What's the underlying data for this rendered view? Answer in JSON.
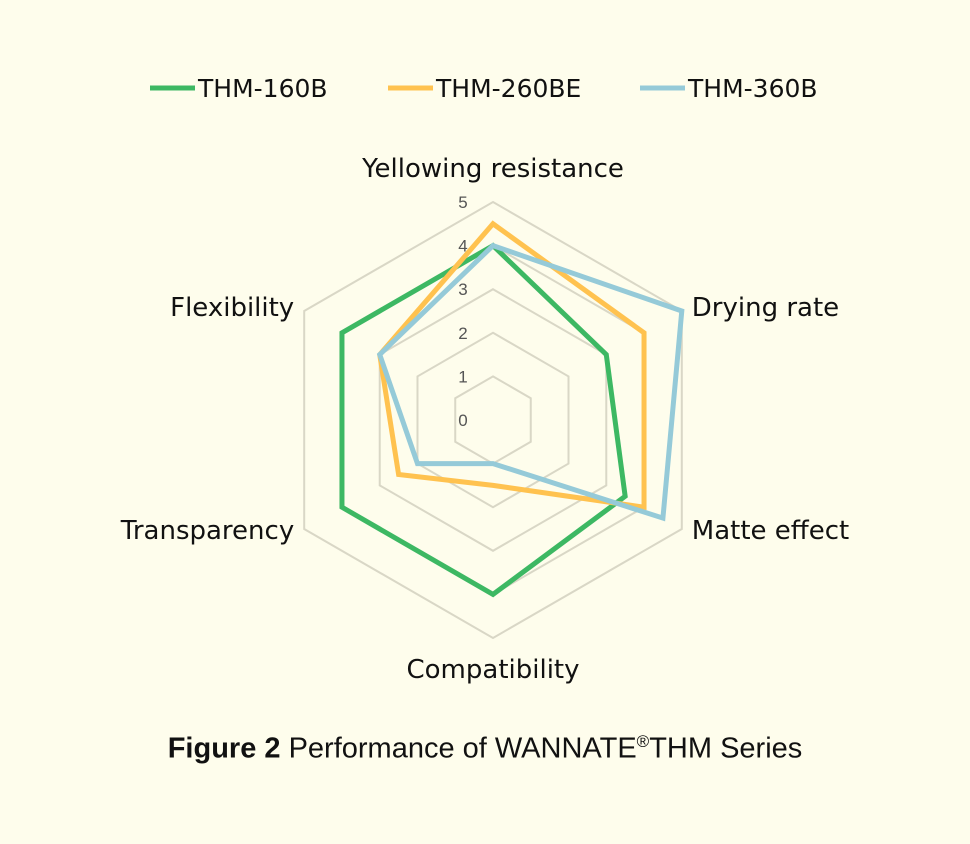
{
  "chart_data": {
    "type": "radar",
    "axes": [
      "Yellowing resistance",
      "Drying rate",
      "Matte effect",
      "Compatibility",
      "Transparency",
      "Flexibility"
    ],
    "rlim": [
      0,
      5
    ],
    "ticks": [
      "0",
      "1",
      "2",
      "3",
      "4",
      "5"
    ],
    "grid": true,
    "legend_position": "top",
    "series": [
      {
        "name": "THM-160B",
        "color": "#3db863",
        "values": [
          4,
          3,
          3.5,
          4,
          4,
          4
        ]
      },
      {
        "name": "THM-260BE",
        "color": "#ffc24f",
        "values": [
          4.5,
          4,
          4,
          1.5,
          2.5,
          3
        ]
      },
      {
        "name": "THM-360B",
        "color": "#95cad8",
        "values": [
          4,
          5,
          4.5,
          1,
          2,
          3
        ]
      }
    ]
  },
  "caption": {
    "label": "Figure 2",
    "text_before": " Performance of WANNATE",
    "registered": "®",
    "text_after": "THM Series"
  }
}
